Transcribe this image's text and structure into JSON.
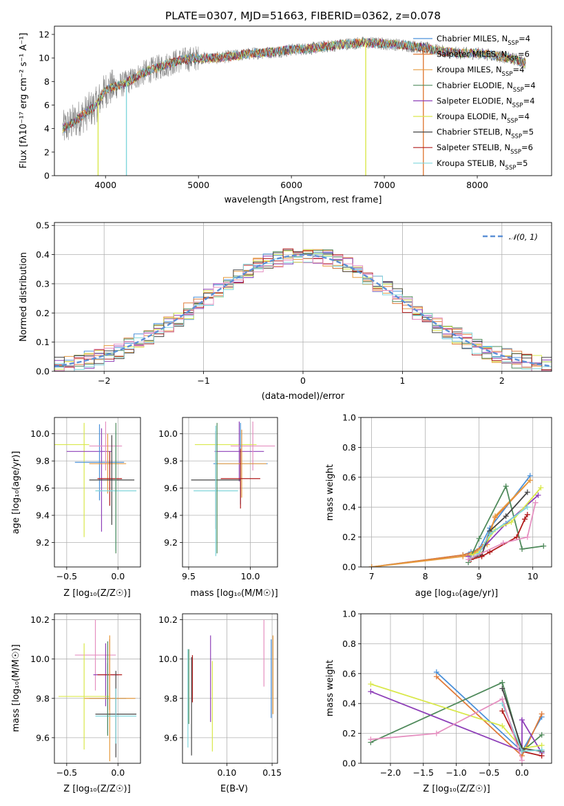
{
  "colors": {
    "miles_chabrier": "#4a90d9",
    "miles_salpeter": "#e07b39",
    "miles_kroupa": "#e69a3e",
    "elodie_chabrier": "#4f8a5b",
    "elodie_salpeter": "#8e3fb8",
    "elodie_kroupa": "#d9e84a",
    "stelib_chabrier": "#444444",
    "stelib_salpeter": "#b11b1b",
    "stelib_kroupa": "#7fd6dc",
    "pink": "#e58fc0",
    "green": "#5f8f6a",
    "gaussian": "#5b8fd6"
  },
  "chart_data": [
    {
      "id": "spectrum",
      "type": "line",
      "title": "PLATE=0307, MJD=51663, FIBERID=0362, z=0.078",
      "xlabel": "wavelength [Angstrom, rest frame]",
      "ylabel": "Flux [f$_\\lambda$10$^{-17}$ erg cm$^{-2}$ s$^{-1}$ A$^{-1}$]",
      "ylabel_text": "Flux [fλ10⁻¹⁷ erg cm⁻² s⁻¹ A⁻¹]",
      "xlim": [
        3450,
        8800
      ],
      "ylim": [
        0,
        12.7
      ],
      "xticks": [
        4000,
        5000,
        6000,
        7000,
        8000
      ],
      "yticks": [
        0,
        2,
        4,
        6,
        8,
        10,
        12
      ],
      "grid": false,
      "legend_position": "right",
      "continuum": {
        "wavelength": [
          3550,
          3700,
          3900,
          4000,
          4200,
          4400,
          4600,
          4800,
          5000,
          5200,
          5400,
          5600,
          5800,
          6000,
          6200,
          6400,
          6600,
          6800,
          7000,
          7200,
          7400,
          7600,
          7800,
          8000,
          8200,
          8400,
          8500
        ],
        "flux": [
          4.0,
          4.8,
          6.0,
          7.3,
          7.8,
          8.7,
          9.3,
          9.8,
          10.0,
          10.0,
          10.2,
          10.4,
          10.5,
          10.7,
          10.8,
          11.0,
          11.2,
          11.3,
          11.2,
          11.1,
          10.9,
          10.6,
          10.4,
          10.4,
          10.2,
          9.9,
          9.6
        ]
      },
      "series": [
        {
          "name": "Chabrier MILES, N$_{SSP}$=4",
          "label_main": "Chabrier MILES, N",
          "label_sub": "SSP",
          "label_tail": "=4",
          "color": "#4a90d9"
        },
        {
          "name": "Salpeter MILES, N$_{SSP}$=6",
          "label_main": "Salpeter MILES, N",
          "label_sub": "SSP",
          "label_tail": "=6",
          "color": "#e07b39"
        },
        {
          "name": "Kroupa MILES, N$_{SSP}$=4",
          "label_main": "Kroupa MILES, N",
          "label_sub": "SSP",
          "label_tail": "=4",
          "color": "#e69a3e"
        },
        {
          "name": "Chabrier ELODIE, N$_{SSP}$=4",
          "label_main": "Chabrier ELODIE, N",
          "label_sub": "SSP",
          "label_tail": "=4",
          "color": "#4f8a5b"
        },
        {
          "name": "Salpeter ELODIE, N$_{SSP}$=4",
          "label_main": "Salpeter ELODIE, N",
          "label_sub": "SSP",
          "label_tail": "=4",
          "color": "#8e3fb8"
        },
        {
          "name": "Kroupa ELODIE, N$_{SSP}$=4",
          "label_main": "Kroupa ELODIE, N",
          "label_sub": "SSP",
          "label_tail": "=4",
          "color": "#d9e84a"
        },
        {
          "name": "Chabrier STELIB, N$_{SSP}$=5",
          "label_main": "Chabrier STELIB, N",
          "label_sub": "SSP",
          "label_tail": "=5",
          "color": "#444444"
        },
        {
          "name": "Salpeter STELIB, N$_{SSP}$=6",
          "label_main": "Salpeter STELIB, N",
          "label_sub": "SSP",
          "label_tail": "=6",
          "color": "#b11b1b"
        },
        {
          "name": "Kroupa STELIB, N$_{SSP}$=5",
          "label_main": "Kroupa STELIB, N",
          "label_sub": "SSP",
          "label_tail": "=5",
          "color": "#7fd6dc"
        }
      ]
    },
    {
      "id": "residuals",
      "type": "line",
      "xlabel": "(data-model)/error",
      "ylabel": "Normed distribution",
      "xlim": [
        -2.5,
        2.5
      ],
      "ylim": [
        0,
        0.51
      ],
      "xticks": [
        -2,
        -1,
        0,
        1,
        2
      ],
      "yticks": [
        0.0,
        0.1,
        0.2,
        0.3,
        0.4,
        0.5
      ],
      "grid": true,
      "legend_position": "top-right",
      "legend": "$\\mathcal{N}(0,1)$",
      "legend_text": "𝒩(0, 1)",
      "bin_width": 0.1
    },
    {
      "id": "age_vs_Z",
      "type": "scatter",
      "xlabel": "Z [log$_{10}$(Z/Z$_\\odot$)]",
      "xlabel_text": "Z [log₁₀(Z/Z☉)]",
      "ylabel": "age  [log$_{10}$(age/yr)]",
      "ylabel_text": "age  [log₁₀(age/yr)]",
      "xlim": [
        -0.62,
        0.22
      ],
      "ylim": [
        9.02,
        10.12
      ],
      "xticks": [
        -0.5,
        0.0
      ],
      "yticks": [
        9.2,
        9.4,
        9.6,
        9.8,
        10.0
      ],
      "grid": true,
      "points": [
        {
          "x": -0.53,
          "y": 9.92,
          "xerr": 0.25,
          "yerr": 0.0,
          "color": "#d9e84a"
        },
        {
          "x": -0.33,
          "y": 9.66,
          "xerr": 0.0,
          "yerr": 0.42,
          "color": "#d9e84a"
        },
        {
          "x": -0.28,
          "y": 9.87,
          "xerr": 0.22,
          "yerr": 0.0,
          "color": "#8e3fb8"
        },
        {
          "x": -0.16,
          "y": 9.66,
          "xerr": 0.0,
          "yerr": 0.38,
          "color": "#8e3fb8"
        },
        {
          "x": -0.18,
          "y": 9.79,
          "xerr": 0.24,
          "yerr": 0.28,
          "color": "#4a90d9"
        },
        {
          "x": -0.12,
          "y": 9.91,
          "xerr": 0.16,
          "yerr": 0.18,
          "color": "#e58fc0"
        },
        {
          "x": -0.1,
          "y": 9.78,
          "xerr": 0.18,
          "yerr": 0.22,
          "color": "#e69a3e"
        },
        {
          "x": -0.08,
          "y": 9.67,
          "xerr": 0.12,
          "yerr": 0.2,
          "color": "#b11b1b"
        },
        {
          "x": -0.06,
          "y": 9.66,
          "xerr": 0.22,
          "yerr": 0.33,
          "color": "#444444"
        },
        {
          "x": -0.02,
          "y": 9.58,
          "xerr": 0.2,
          "yerr": 0.44,
          "color": "#7fd6dc"
        },
        {
          "x": -0.02,
          "y": 9.6,
          "xerr": 0.0,
          "yerr": 0.48,
          "color": "#4f8a5b"
        }
      ]
    },
    {
      "id": "age_vs_mass",
      "type": "scatter",
      "xlabel": "mass [log$_{10}$(M/M$_\\odot$)]",
      "xlabel_text": "mass [log₁₀(M/M☉)]",
      "ylabel": "",
      "xlim": [
        9.45,
        10.22
      ],
      "ylim": [
        9.02,
        10.12
      ],
      "xticks": [
        9.5,
        10.0
      ],
      "yticks": [
        9.2,
        9.4,
        9.6,
        9.8,
        10.0
      ],
      "grid": true,
      "points": [
        {
          "x": 9.8,
          "y": 9.92,
          "xerr": 0.25,
          "yerr": 0.0,
          "color": "#d9e84a"
        },
        {
          "x": 9.91,
          "y": 9.87,
          "xerr": 0.2,
          "yerr": 0.22,
          "color": "#8e3fb8"
        },
        {
          "x": 10.02,
          "y": 9.91,
          "xerr": 0.18,
          "yerr": 0.18,
          "color": "#e58fc0"
        },
        {
          "x": 9.92,
          "y": 9.78,
          "xerr": 0.22,
          "yerr": 0.3,
          "color": "#4a90d9"
        },
        {
          "x": 9.93,
          "y": 9.78,
          "xerr": 0.2,
          "yerr": 0.25,
          "color": "#e69a3e"
        },
        {
          "x": 9.92,
          "y": 9.67,
          "xerr": 0.16,
          "yerr": 0.22,
          "color": "#b11b1b"
        },
        {
          "x": 9.72,
          "y": 9.66,
          "xerr": 0.2,
          "yerr": 0.36,
          "color": "#444444"
        },
        {
          "x": 9.72,
          "y": 9.58,
          "xerr": 0.18,
          "yerr": 0.48,
          "color": "#7fd6dc"
        },
        {
          "x": 9.73,
          "y": 9.6,
          "xerr": 0.0,
          "yerr": 0.48,
          "color": "#4f8a5b"
        }
      ]
    },
    {
      "id": "weights_vs_age",
      "type": "line",
      "xlabel": "age  [log$_{10}$(age/yr)]",
      "xlabel_text": "age  [log₁₀(age/yr)]",
      "ylabel": "mass weight",
      "xlim": [
        6.8,
        10.35
      ],
      "ylim": [
        0,
        1.0
      ],
      "xticks": [
        7,
        8,
        9,
        10
      ],
      "yticks": [
        0.0,
        0.2,
        0.4,
        0.6,
        0.8,
        1.0
      ],
      "grid": true,
      "series": [
        {
          "color": "#4a90d9",
          "x": [
            7.0,
            8.7,
            8.85,
            9.0,
            9.2,
            9.95
          ],
          "y": [
            0.0,
            0.08,
            0.1,
            0.12,
            0.26,
            0.61
          ]
        },
        {
          "color": "#e07b39",
          "x": [
            7.0,
            8.7,
            8.9,
            9.1,
            9.3,
            9.95
          ],
          "y": [
            0.0,
            0.08,
            0.1,
            0.15,
            0.33,
            0.58
          ]
        },
        {
          "color": "#e69a3e",
          "x": [
            7.0,
            8.7,
            8.9,
            9.15,
            9.3,
            9.95
          ],
          "y": [
            0.0,
            0.07,
            0.09,
            0.15,
            0.34,
            0.58
          ]
        },
        {
          "color": "#4f8a5b",
          "x": [
            8.8,
            9.0,
            9.5,
            9.8,
            10.2
          ],
          "y": [
            0.03,
            0.19,
            0.54,
            0.12,
            0.14
          ]
        },
        {
          "color": "#8e3fb8",
          "x": [
            8.8,
            9.0,
            9.5,
            10.1
          ],
          "y": [
            0.07,
            0.1,
            0.29,
            0.48
          ]
        },
        {
          "color": "#d9e84a",
          "x": [
            8.85,
            9.0,
            9.3,
            9.6,
            10.15
          ],
          "y": [
            0.08,
            0.1,
            0.25,
            0.3,
            0.53
          ]
        },
        {
          "color": "#444444",
          "x": [
            8.85,
            9.05,
            9.2,
            9.5,
            9.9
          ],
          "y": [
            0.06,
            0.08,
            0.24,
            0.34,
            0.5
          ]
        },
        {
          "color": "#b11b1b",
          "x": [
            8.85,
            9.05,
            9.2,
            9.7,
            9.85,
            9.9
          ],
          "y": [
            0.05,
            0.07,
            0.1,
            0.2,
            0.32,
            0.35
          ]
        },
        {
          "color": "#7fd6dc",
          "x": [
            8.85,
            9.0,
            9.2,
            9.9
          ],
          "y": [
            0.06,
            0.09,
            0.22,
            0.4
          ]
        },
        {
          "color": "#e58fc0",
          "x": [
            8.8,
            9.45,
            9.9,
            10.05
          ],
          "y": [
            0.05,
            0.16,
            0.2,
            0.43
          ]
        }
      ]
    },
    {
      "id": "mass_vs_Z",
      "type": "scatter",
      "xlabel": "Z [log$_{10}$(Z/Z$_\\odot$)]",
      "xlabel_text": "Z [log₁₀(Z/Z☉)]",
      "ylabel": "mass [log$_{10}$(M/M$_\\odot$)]",
      "ylabel_text": "mass [log₁₀(M/M☉)]",
      "xlim": [
        -0.62,
        0.22
      ],
      "ylim": [
        9.47,
        10.23
      ],
      "xticks": [
        -0.5,
        0.0
      ],
      "yticks": [
        9.6,
        9.8,
        10.0,
        10.2
      ],
      "grid": true,
      "points": [
        {
          "x": -0.22,
          "y": 10.02,
          "xerr": 0.2,
          "yerr": 0.18,
          "color": "#e58fc0"
        },
        {
          "x": -0.12,
          "y": 9.92,
          "xerr": 0.12,
          "yerr": 0.16,
          "color": "#8e3fb8"
        },
        {
          "x": -0.08,
          "y": 9.92,
          "xerr": 0.12,
          "yerr": 0.18,
          "color": "#b11b1b"
        },
        {
          "x": -0.1,
          "y": 9.8,
          "xerr": 0.18,
          "yerr": 0.18,
          "color": "#4a90d9"
        },
        {
          "x": -0.08,
          "y": 9.8,
          "xerr": 0.25,
          "yerr": 0.32,
          "color": "#e69a3e"
        },
        {
          "x": -0.33,
          "y": 9.81,
          "xerr": 0.25,
          "yerr": 0.27,
          "color": "#d9e84a"
        },
        {
          "x": -0.02,
          "y": 9.72,
          "xerr": 0.2,
          "yerr": 0.22,
          "color": "#444444"
        },
        {
          "x": -0.02,
          "y": 9.71,
          "xerr": 0.2,
          "yerr": 0.14,
          "color": "#7fd6dc"
        },
        {
          "x": -0.1,
          "y": 9.85,
          "xerr": 0.0,
          "yerr": 0.24,
          "color": "#4f8a5b"
        }
      ]
    },
    {
      "id": "mass_vs_ebv",
      "type": "scatter",
      "xlabel": "E(B-V)",
      "ylabel": "",
      "xlim": [
        0.051,
        0.156
      ],
      "ylim": [
        9.47,
        10.23
      ],
      "xticks": [
        0.1,
        0.15
      ],
      "yticks": [
        9.6,
        9.8,
        10.0,
        10.2
      ],
      "grid": true,
      "points": [
        {
          "x": 0.057,
          "y": 9.8,
          "xerr": 0.0,
          "yerr": 0.25,
          "color": "#7fd6dc"
        },
        {
          "x": 0.058,
          "y": 9.86,
          "xerr": 0.0,
          "yerr": 0.19,
          "color": "#4f8a5b"
        },
        {
          "x": 0.061,
          "y": 9.76,
          "xerr": 0.0,
          "yerr": 0.25,
          "color": "#444444"
        },
        {
          "x": 0.062,
          "y": 9.9,
          "xerr": 0.0,
          "yerr": 0.12,
          "color": "#b11b1b"
        },
        {
          "x": 0.082,
          "y": 9.9,
          "xerr": 0.0,
          "yerr": 0.22,
          "color": "#8e3fb8"
        },
        {
          "x": 0.084,
          "y": 9.76,
          "xerr": 0.0,
          "yerr": 0.23,
          "color": "#d9e84a"
        },
        {
          "x": 0.141,
          "y": 10.03,
          "xerr": 0.0,
          "yerr": 0.17,
          "color": "#e58fc0"
        },
        {
          "x": 0.149,
          "y": 9.9,
          "xerr": 0.0,
          "yerr": 0.2,
          "color": "#4a90d9"
        },
        {
          "x": 0.151,
          "y": 9.92,
          "xerr": 0.0,
          "yerr": 0.2,
          "color": "#e69a3e"
        }
      ]
    },
    {
      "id": "weights_vs_Z",
      "type": "line",
      "xlabel": "Z [log$_{10}$(Z/Z$_\\odot$)]",
      "xlabel_text": "Z [log₁₀(Z/Z☉)]",
      "ylabel": "mass weight",
      "xlim": [
        -2.45,
        0.45
      ],
      "ylim": [
        0,
        1.0
      ],
      "xticks": [
        -2.0,
        -1.5,
        -1.0,
        -0.5,
        0.0
      ],
      "yticks": [
        0.0,
        0.2,
        0.4,
        0.6,
        0.8,
        1.0
      ],
      "grid": true,
      "series": [
        {
          "color": "#4a90d9",
          "x": [
            -1.3,
            0.0,
            0.3
          ],
          "y": [
            0.61,
            0.08,
            0.31
          ]
        },
        {
          "color": "#e07b39",
          "x": [
            -1.3,
            0.0,
            0.3
          ],
          "y": [
            0.58,
            0.05,
            0.33
          ]
        },
        {
          "color": "#4f8a5b",
          "x": [
            -2.3,
            -0.3,
            0.0,
            0.3
          ],
          "y": [
            0.14,
            0.54,
            0.08,
            0.19
          ]
        },
        {
          "color": "#8e3fb8",
          "x": [
            -2.3,
            0.0,
            0.0,
            0.3
          ],
          "y": [
            0.48,
            0.08,
            0.29,
            0.07
          ]
        },
        {
          "color": "#d9e84a",
          "x": [
            -2.3,
            -0.3,
            0.0,
            0.3
          ],
          "y": [
            0.53,
            0.25,
            0.1,
            0.12
          ]
        },
        {
          "color": "#444444",
          "x": [
            -0.3,
            0.0,
            0.3
          ],
          "y": [
            0.5,
            0.1,
            0.08
          ]
        },
        {
          "color": "#b11b1b",
          "x": [
            -0.3,
            0.0,
            0.3
          ],
          "y": [
            0.35,
            0.08,
            0.05
          ]
        },
        {
          "color": "#7fd6dc",
          "x": [
            -0.3,
            0.0,
            0.3
          ],
          "y": [
            0.4,
            0.08,
            0.09
          ]
        },
        {
          "color": "#e58fc0",
          "x": [
            -2.3,
            -1.3,
            -0.3,
            0.0
          ],
          "y": [
            0.16,
            0.2,
            0.43,
            0.02
          ]
        }
      ]
    }
  ]
}
